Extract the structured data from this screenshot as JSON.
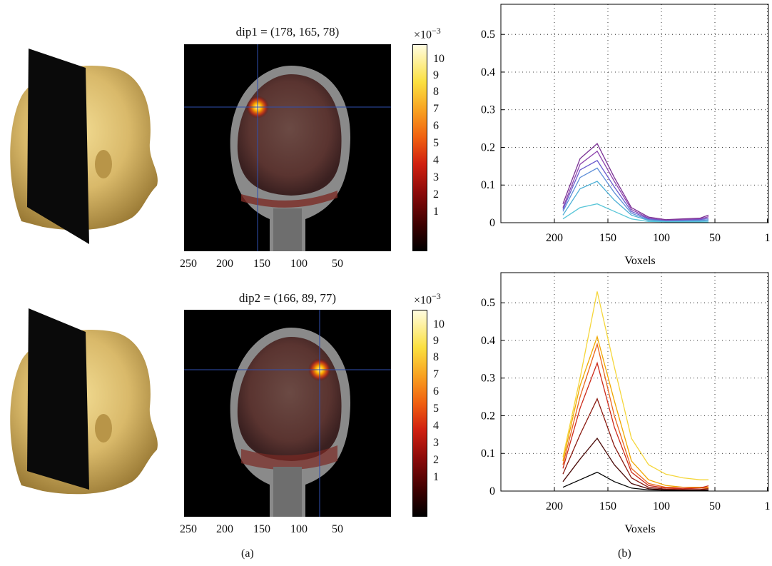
{
  "panel_a": {
    "caption": "(a)",
    "rows": [
      {
        "title": "dip1 = (178, 165, 78)",
        "xticks": [
          "250",
          "200",
          "150",
          "100",
          "50"
        ],
        "colorbar": {
          "exponent": "×10",
          "exponent_sup": "−3",
          "ticks": [
            "10",
            "9",
            "8",
            "7",
            "6",
            "5",
            "4",
            "3",
            "2",
            "1"
          ]
        },
        "crosshair": {
          "x": 178,
          "y": 165,
          "z": 78
        }
      },
      {
        "title": "dip2 = (166, 89, 77)",
        "xticks": [
          "250",
          "200",
          "150",
          "100",
          "50"
        ],
        "colorbar": {
          "exponent": "×10",
          "exponent_sup": "−3",
          "ticks": [
            "10",
            "9",
            "8",
            "7",
            "6",
            "5",
            "4",
            "3",
            "2",
            "1"
          ]
        },
        "crosshair": {
          "x": 166,
          "y": 89,
          "z": 77
        }
      }
    ]
  },
  "panel_b": {
    "caption": "(b)"
  },
  "chart_data": [
    {
      "type": "line",
      "xlabel": "Voxels",
      "ylabel": "",
      "xlim": [
        250,
        0
      ],
      "ylim": [
        0,
        0.58
      ],
      "x_reversed": true,
      "xticks": [
        "200",
        "150",
        "100",
        "50",
        "1"
      ],
      "yticks": [
        "0",
        "0.1",
        "0.2",
        "0.3",
        "0.4",
        "0.5"
      ],
      "grid": true,
      "x": [
        192,
        176,
        160,
        144,
        128,
        112,
        96,
        80,
        64,
        56
      ],
      "series": [
        {
          "color": "#7b3294",
          "values": [
            0.05,
            0.17,
            0.21,
            0.12,
            0.04,
            0.015,
            0.008,
            0.01,
            0.012,
            0.02
          ]
        },
        {
          "color": "#8e44ad",
          "values": [
            0.04,
            0.155,
            0.19,
            0.11,
            0.035,
            0.012,
            0.006,
            0.008,
            0.01,
            0.016
          ]
        },
        {
          "color": "#6a5acd",
          "values": [
            0.035,
            0.14,
            0.165,
            0.095,
            0.03,
            0.01,
            0.005,
            0.006,
            0.008,
            0.012
          ]
        },
        {
          "color": "#5f8fd8",
          "values": [
            0.03,
            0.12,
            0.145,
            0.08,
            0.025,
            0.008,
            0.004,
            0.005,
            0.006,
            0.008
          ]
        },
        {
          "color": "#4fb0d6",
          "values": [
            0.02,
            0.09,
            0.11,
            0.06,
            0.02,
            0.006,
            0.003,
            0.003,
            0.004,
            0.005
          ]
        },
        {
          "color": "#59c6d8",
          "values": [
            0.01,
            0.04,
            0.05,
            0.03,
            0.01,
            0.003,
            0.002,
            0.002,
            0.002,
            0.002
          ]
        }
      ]
    },
    {
      "type": "line",
      "xlabel": "Voxels",
      "ylabel": "",
      "xlim": [
        250,
        0
      ],
      "ylim": [
        0,
        0.58
      ],
      "x_reversed": true,
      "xticks": [
        "200",
        "150",
        "100",
        "50",
        "1"
      ],
      "yticks": [
        "0",
        "0.1",
        "0.2",
        "0.3",
        "0.4",
        "0.5"
      ],
      "grid": true,
      "x": [
        192,
        176,
        160,
        144,
        128,
        112,
        96,
        80,
        64,
        56
      ],
      "series": [
        {
          "color": "#f5d63a",
          "values": [
            0.09,
            0.3,
            0.53,
            0.33,
            0.14,
            0.07,
            0.045,
            0.035,
            0.03,
            0.03
          ]
        },
        {
          "color": "#f0a800",
          "values": [
            0.08,
            0.28,
            0.41,
            0.24,
            0.08,
            0.03,
            0.015,
            0.01,
            0.01,
            0.01
          ]
        },
        {
          "color": "#e8651e",
          "values": [
            0.07,
            0.25,
            0.39,
            0.2,
            0.06,
            0.02,
            0.01,
            0.01,
            0.008,
            0.008
          ]
        },
        {
          "color": "#cc2a1a",
          "values": [
            0.06,
            0.22,
            0.34,
            0.17,
            0.05,
            0.015,
            0.008,
            0.006,
            0.008,
            0.014
          ]
        },
        {
          "color": "#8b1a10",
          "values": [
            0.045,
            0.15,
            0.245,
            0.12,
            0.035,
            0.01,
            0.005,
            0.004,
            0.004,
            0.006
          ]
        },
        {
          "color": "#4a0a08",
          "values": [
            0.025,
            0.085,
            0.14,
            0.07,
            0.02,
            0.006,
            0.003,
            0.002,
            0.002,
            0.003
          ]
        },
        {
          "color": "#000000",
          "values": [
            0.01,
            0.03,
            0.05,
            0.025,
            0.008,
            0.003,
            0.002,
            0.001,
            0.001,
            0.001
          ]
        }
      ]
    }
  ]
}
